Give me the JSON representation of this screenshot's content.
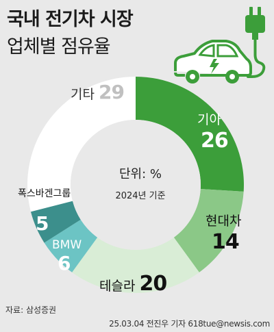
{
  "title": {
    "line1": "국내 전기차 시장",
    "line2": "업체별 점유율"
  },
  "center": {
    "unit_label": "단위: %",
    "year_label": "2024년 기준"
  },
  "source": "자료: 삼성증권",
  "credit": "25.03.04 전진우 기자 618tue@newsis.com",
  "colors": {
    "kia": "#3c9e3a",
    "hyundai": "#8bc887",
    "tesla": "#d9edd6",
    "bmw": "#6cc4c4",
    "vw": "#3c8f8c",
    "other": "#ffffff",
    "background": "#e9e9e9"
  },
  "chart_data": {
    "type": "pie",
    "style": "donut",
    "categories": [
      "기아",
      "현대차",
      "테슬라",
      "BMW",
      "폭스바겐그룹",
      "기타"
    ],
    "values": [
      26,
      14,
      20,
      6,
      5,
      29
    ],
    "labels": {
      "kia": {
        "name": "기아",
        "value": "26"
      },
      "hyundai": {
        "name": "현대차",
        "value": "14"
      },
      "tesla": {
        "name": "테슬라",
        "value": "20"
      },
      "bmw": {
        "name": "BMW",
        "value": "6"
      },
      "vw": {
        "name": "폭스바겐그룹",
        "value": "5"
      },
      "other": {
        "name": "기타",
        "value": "29"
      }
    }
  }
}
